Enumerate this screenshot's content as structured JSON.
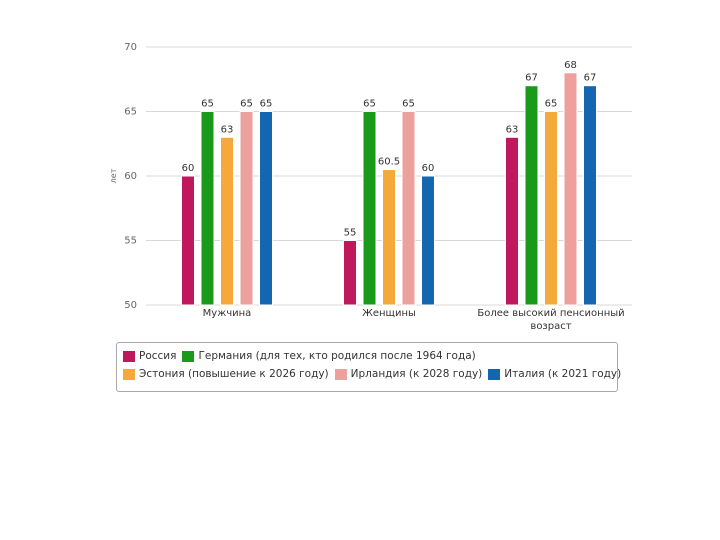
{
  "chart_data": {
    "type": "bar",
    "ylabel": "лет",
    "ylim": [
      50,
      70
    ],
    "yticks": [
      50,
      55,
      60,
      65,
      70
    ],
    "grid": true,
    "legend_position": "bottom",
    "categories": [
      "Мужчина",
      "Женщины",
      "Более высокий пенсионный возраст"
    ],
    "series": [
      {
        "name": "Россия",
        "color": "#c0185d",
        "values": [
          60,
          55,
          63
        ]
      },
      {
        "name": "Германия (для тех, кто родился после 1964 года)",
        "color": "#1a9a1a",
        "values": [
          65,
          65,
          67
        ]
      },
      {
        "name": "Эстония (повышение к 2026 году)",
        "color": "#f5a93b",
        "values": [
          63,
          60.5,
          65
        ]
      },
      {
        "name": "Ирландия (к 2028 году)",
        "color": "#eea19c",
        "values": [
          65,
          65,
          68
        ]
      },
      {
        "name": "Италия (к 2021 году)",
        "color": "#1566b0",
        "values": [
          65,
          60,
          67
        ]
      }
    ]
  }
}
